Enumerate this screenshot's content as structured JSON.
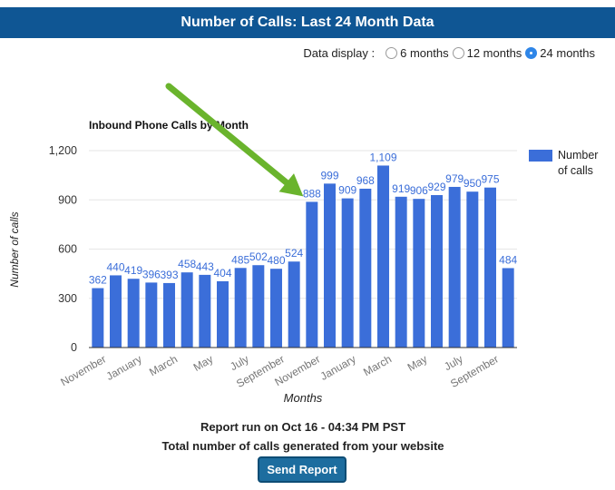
{
  "header": {
    "title": "Number of Calls: Last 24 Month Data"
  },
  "data_display": {
    "label": "Data display :",
    "options": [
      {
        "label": "6 months",
        "selected": false
      },
      {
        "label": "12 months",
        "selected": false
      },
      {
        "label": "24 months",
        "selected": true
      }
    ]
  },
  "chart_data": {
    "type": "bar",
    "title": "Inbound Phone Calls by Month",
    "xlabel": "Months",
    "ylabel": "Number of calls",
    "ylim": [
      0,
      1200
    ],
    "yticks": [
      "0",
      "300",
      "600",
      "900",
      "1,200"
    ],
    "x_tick_labels": [
      "November",
      "January",
      "March",
      "May",
      "July",
      "September",
      "November",
      "January",
      "March",
      "May",
      "July",
      "September"
    ],
    "series": [
      {
        "name": "Number of calls",
        "color": "#3b6ed9",
        "values": [
          362,
          440,
          419,
          396,
          393,
          458,
          443,
          404,
          485,
          502,
          480,
          524,
          888,
          999,
          909,
          968,
          1109,
          919,
          906,
          929,
          979,
          950,
          975,
          484
        ],
        "labels": [
          "362",
          "440",
          "419",
          "396",
          "393",
          "458",
          "443",
          "404",
          "485",
          "502",
          "480",
          "524",
          "888",
          "999",
          "909",
          "968",
          "1,109",
          "919",
          "906",
          "929",
          "979",
          "950",
          "975",
          "484"
        ]
      }
    ],
    "legend": {
      "position": "right",
      "label": "Number of calls"
    },
    "annotation": {
      "type": "arrow",
      "color": "#6ab42d",
      "points_to_value": 888
    }
  },
  "footer": {
    "report_run": "Report run on Oct 16 - 04:34 PM PST",
    "total_line": "Total number of calls generated from your website",
    "send_button": "Send Report"
  }
}
